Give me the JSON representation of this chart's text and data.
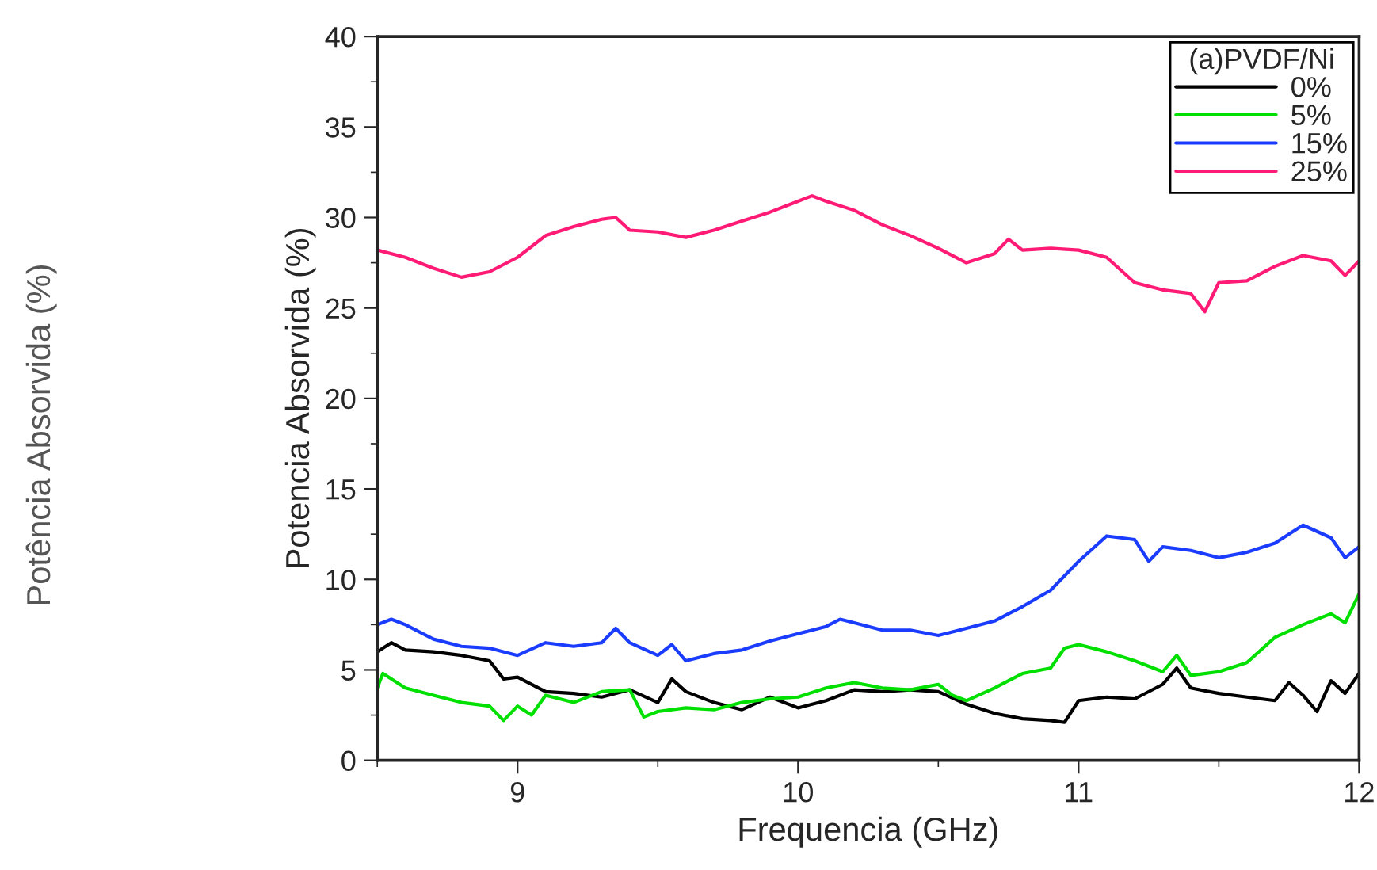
{
  "chart_data": {
    "type": "line",
    "xlabel": "Frequencia (GHz)",
    "ylabel": "Potencia Absorvida (%)",
    "legend_title": "(a)PVDF/Ni",
    "legend": "top right",
    "grid": false,
    "xlim": [
      8.5,
      12
    ],
    "xticks": [
      9,
      10,
      11,
      12
    ],
    "ylim": [
      0,
      40
    ],
    "yticks": [
      0,
      5,
      10,
      15,
      20,
      25,
      30,
      35,
      40
    ],
    "annotations": [
      "Potência Absorvida (%)"
    ],
    "series": [
      {
        "name": "0%",
        "color": "#000000",
        "x": [
          8.5,
          8.55,
          8.6,
          8.7,
          8.8,
          8.9,
          8.95,
          9.0,
          9.1,
          9.2,
          9.3,
          9.4,
          9.5,
          9.55,
          9.6,
          9.7,
          9.8,
          9.9,
          10.0,
          10.1,
          10.2,
          10.3,
          10.4,
          10.5,
          10.6,
          10.7,
          10.8,
          10.9,
          10.95,
          11.0,
          11.1,
          11.2,
          11.3,
          11.35,
          11.4,
          11.5,
          11.6,
          11.7,
          11.75,
          11.8,
          11.85,
          11.9,
          11.95,
          12.0
        ],
        "values": [
          6.0,
          6.5,
          6.1,
          6.0,
          5.8,
          5.5,
          4.5,
          4.6,
          3.8,
          3.7,
          3.5,
          3.9,
          3.2,
          4.5,
          3.8,
          3.2,
          2.8,
          3.5,
          2.9,
          3.3,
          3.9,
          3.8,
          3.9,
          3.8,
          3.1,
          2.6,
          2.3,
          2.2,
          2.1,
          3.3,
          3.5,
          3.4,
          4.2,
          5.1,
          4.0,
          3.7,
          3.5,
          3.3,
          4.3,
          3.6,
          2.7,
          4.4,
          3.7,
          4.8
        ]
      },
      {
        "name": "5%",
        "color": "#00e000",
        "x": [
          8.5,
          8.52,
          8.6,
          8.7,
          8.8,
          8.9,
          8.95,
          9.0,
          9.05,
          9.1,
          9.2,
          9.3,
          9.4,
          9.45,
          9.5,
          9.6,
          9.7,
          9.8,
          9.9,
          10.0,
          10.1,
          10.2,
          10.3,
          10.4,
          10.5,
          10.55,
          10.6,
          10.7,
          10.8,
          10.9,
          10.95,
          11.0,
          11.1,
          11.2,
          11.3,
          11.35,
          11.4,
          11.5,
          11.6,
          11.7,
          11.8,
          11.9,
          11.95,
          12.0
        ],
        "values": [
          4.0,
          4.8,
          4.0,
          3.6,
          3.2,
          3.0,
          2.2,
          3.0,
          2.5,
          3.6,
          3.2,
          3.8,
          3.9,
          2.4,
          2.7,
          2.9,
          2.8,
          3.2,
          3.4,
          3.5,
          4.0,
          4.3,
          4.0,
          3.9,
          4.2,
          3.6,
          3.3,
          4.0,
          4.8,
          5.1,
          6.2,
          6.4,
          6.0,
          5.5,
          4.9,
          5.8,
          4.7,
          4.9,
          5.4,
          6.8,
          7.5,
          8.1,
          7.6,
          9.2
        ]
      },
      {
        "name": "15%",
        "color": "#1a3cff",
        "x": [
          8.5,
          8.55,
          8.6,
          8.7,
          8.8,
          8.9,
          9.0,
          9.1,
          9.2,
          9.3,
          9.35,
          9.4,
          9.5,
          9.55,
          9.6,
          9.7,
          9.8,
          9.9,
          10.0,
          10.1,
          10.15,
          10.2,
          10.3,
          10.4,
          10.5,
          10.6,
          10.7,
          10.8,
          10.9,
          11.0,
          11.05,
          11.1,
          11.2,
          11.25,
          11.3,
          11.4,
          11.5,
          11.6,
          11.7,
          11.8,
          11.9,
          11.95,
          12.0
        ],
        "values": [
          7.5,
          7.8,
          7.5,
          6.7,
          6.3,
          6.2,
          5.8,
          6.5,
          6.3,
          6.5,
          7.3,
          6.5,
          5.8,
          6.4,
          5.5,
          5.9,
          6.1,
          6.6,
          7.0,
          7.4,
          7.8,
          7.6,
          7.2,
          7.2,
          6.9,
          7.3,
          7.7,
          8.5,
          9.4,
          11.0,
          11.7,
          12.4,
          12.2,
          11.0,
          11.8,
          11.6,
          11.2,
          11.5,
          12.0,
          13.0,
          12.3,
          11.2,
          11.8
        ]
      },
      {
        "name": "25%",
        "color": "#ff1a75",
        "x": [
          8.5,
          8.6,
          8.7,
          8.8,
          8.9,
          9.0,
          9.1,
          9.2,
          9.3,
          9.35,
          9.4,
          9.5,
          9.6,
          9.7,
          9.8,
          9.9,
          10.0,
          10.05,
          10.1,
          10.2,
          10.3,
          10.4,
          10.5,
          10.6,
          10.7,
          10.75,
          10.8,
          10.9,
          11.0,
          11.1,
          11.2,
          11.3,
          11.4,
          11.45,
          11.5,
          11.6,
          11.7,
          11.8,
          11.9,
          11.95,
          12.0
        ],
        "values": [
          28.2,
          27.8,
          27.2,
          26.7,
          27.0,
          27.8,
          29.0,
          29.5,
          29.9,
          30.0,
          29.3,
          29.2,
          28.9,
          29.3,
          29.8,
          30.3,
          30.9,
          31.2,
          30.9,
          30.4,
          29.6,
          29.0,
          28.3,
          27.5,
          28.0,
          28.8,
          28.2,
          28.3,
          28.2,
          27.8,
          26.4,
          26.0,
          25.8,
          24.8,
          26.4,
          26.5,
          27.3,
          27.9,
          27.6,
          26.8,
          27.6
        ]
      }
    ]
  }
}
